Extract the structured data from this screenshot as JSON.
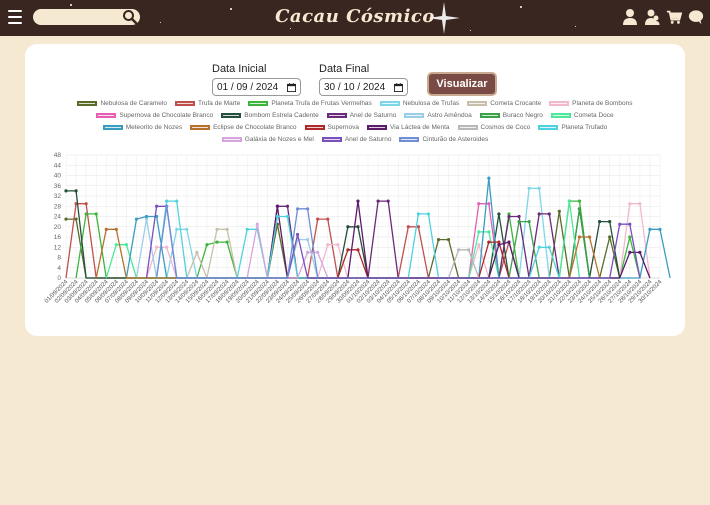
{
  "header": {
    "title": "Cacau Cósmico",
    "search_placeholder": "",
    "icons": [
      "menu-icon",
      "search-icon",
      "user-icon",
      "users-icon",
      "cart-icon",
      "chat-icon"
    ]
  },
  "filters": {
    "start_label": "Data Inicial",
    "start_value": "01 / 09 / 2024",
    "end_label": "Data Final",
    "end_value": "30 / 10 / 2024",
    "button_label": "Visualizar"
  },
  "chart_data": {
    "type": "line",
    "ylim": [
      0,
      48
    ],
    "yticks": [
      0,
      4,
      8,
      12,
      16,
      20,
      24,
      28,
      32,
      36,
      40,
      44,
      48
    ],
    "categories": [
      "01/09/2024",
      "02/09/2024",
      "03/09/2024",
      "04/09/2024",
      "05/09/2024",
      "06/09/2024",
      "07/09/2024",
      "08/09/2024",
      "09/09/2024",
      "10/09/2024",
      "11/09/2024",
      "12/09/2024",
      "13/09/2024",
      "14/09/2024",
      "15/09/2024",
      "16/09/2024",
      "17/09/2024",
      "18/09/2024",
      "19/09/2024",
      "20/09/2024",
      "21/09/2024",
      "22/09/2024",
      "23/09/2024",
      "24/09/2024",
      "25/09/2024",
      "26/09/2024",
      "27/09/2024",
      "28/09/2024",
      "29/09/2024",
      "30/09/2024",
      "01/10/2024",
      "02/10/2024",
      "03/10/2024",
      "04/10/2024",
      "05/10/2024",
      "06/10/2024",
      "07/10/2024",
      "08/10/2024",
      "09/10/2024",
      "10/10/2024",
      "11/10/2024",
      "12/10/2024",
      "13/10/2024",
      "14/10/2024",
      "15/10/2024",
      "16/10/2024",
      "17/10/2024",
      "18/10/2024",
      "19/10/2024",
      "20/10/2024",
      "21/10/2024",
      "22/10/2024",
      "23/10/2024",
      "24/10/2024",
      "25/10/2024",
      "26/10/2024",
      "27/10/2024",
      "28/10/2024",
      "29/10/2024",
      "30/10/2024"
    ],
    "legend_rows": [
      [
        "Nebulosa de Caramelo",
        "Trufa de Marte",
        "Planeta Trufa de Frutas Vermelhas",
        "Nebulosa de Trufas",
        "Cometa Crocante",
        "Planeta de Bombons"
      ],
      [
        "Supernova de Chocolate Branco",
        "Bombom Estrela Cadente",
        "Anel de Saturno",
        "Astro Amêndoa",
        "Buraco Negro",
        "Cometa Doce"
      ],
      [
        "Meteorito de Nozes",
        "Eclipse de Chocolate Branco",
        "Supernova",
        "Via Láctea de Menta",
        "Cosmos de Coco",
        "Planeta Trufado"
      ],
      [
        "Galáxia de Nozes e Mel",
        "Anel de Saturno",
        "Cinturão de Asteroides"
      ]
    ],
    "series": [
      {
        "name": "Nebulosa de Caramelo",
        "color": "#5a6b2a",
        "points": [
          [
            0,
            23
          ],
          [
            1,
            23
          ],
          [
            2,
            0
          ],
          [
            20,
            0
          ],
          [
            21,
            21
          ],
          [
            22,
            0
          ],
          [
            36,
            0
          ],
          [
            37,
            15
          ],
          [
            38,
            15
          ],
          [
            39,
            0
          ],
          [
            48,
            0
          ],
          [
            49,
            26
          ],
          [
            50,
            0
          ],
          [
            53,
            0
          ],
          [
            54,
            16
          ],
          [
            55,
            0
          ]
        ]
      },
      {
        "name": "Trufa de Marte",
        "color": "#c0504d",
        "points": [
          [
            0,
            0
          ],
          [
            1,
            29
          ],
          [
            2,
            29
          ],
          [
            3,
            0
          ],
          [
            24,
            0
          ],
          [
            25,
            23
          ],
          [
            26,
            23
          ],
          [
            27,
            0
          ],
          [
            33,
            0
          ],
          [
            34,
            20
          ],
          [
            35,
            20
          ],
          [
            36,
            0
          ],
          [
            43,
            0
          ],
          [
            44,
            14
          ],
          [
            45,
            0
          ]
        ]
      },
      {
        "name": "Planeta Trufa de Frutas Vermelhas",
        "color": "#3db53d",
        "points": [
          [
            1,
            0
          ],
          [
            2,
            25
          ],
          [
            3,
            25
          ],
          [
            4,
            0
          ],
          [
            13,
            0
          ],
          [
            14,
            13
          ],
          [
            15,
            14
          ],
          [
            16,
            14
          ],
          [
            17,
            0
          ],
          [
            43,
            0
          ],
          [
            44,
            25
          ],
          [
            45,
            0
          ],
          [
            49,
            0
          ],
          [
            50,
            30
          ],
          [
            51,
            30
          ],
          [
            52,
            0
          ],
          [
            55,
            0
          ],
          [
            56,
            16
          ],
          [
            57,
            0
          ]
        ]
      },
      {
        "name": "Nebulosa de Trufas",
        "color": "#7fd6e8",
        "points": [
          [
            10,
            0
          ],
          [
            11,
            19
          ],
          [
            12,
            19
          ],
          [
            13,
            0
          ],
          [
            45,
            0
          ],
          [
            46,
            35
          ],
          [
            47,
            35
          ],
          [
            48,
            0
          ]
        ]
      },
      {
        "name": "Cometa Crocante",
        "color": "#c8c0a8",
        "points": [
          [
            12,
            0
          ],
          [
            13,
            10
          ],
          [
            14,
            0
          ],
          [
            15,
            19
          ],
          [
            16,
            19
          ],
          [
            17,
            0
          ]
        ]
      },
      {
        "name": "Planeta de Bombons",
        "color": "#f2b8d0",
        "points": [
          [
            8,
            0
          ],
          [
            9,
            12
          ],
          [
            10,
            12
          ],
          [
            11,
            0
          ],
          [
            25,
            0
          ],
          [
            26,
            13
          ],
          [
            27,
            13
          ],
          [
            28,
            0
          ],
          [
            40,
            0
          ],
          [
            41,
            13
          ],
          [
            42,
            0
          ],
          [
            55,
            0
          ],
          [
            56,
            29
          ],
          [
            57,
            29
          ],
          [
            58,
            0
          ]
        ]
      },
      {
        "name": "Supernova de Chocolate Branco",
        "color": "#e75fb0",
        "points": [
          [
            40,
            0
          ],
          [
            41,
            29
          ],
          [
            42,
            29
          ],
          [
            43,
            0
          ]
        ]
      },
      {
        "name": "Bombom Estrela Cadente",
        "color": "#244f3a",
        "points": [
          [
            0,
            34
          ],
          [
            1,
            34
          ],
          [
            2,
            0
          ],
          [
            27,
            0
          ],
          [
            28,
            20
          ],
          [
            29,
            20
          ],
          [
            30,
            0
          ],
          [
            42,
            0
          ],
          [
            43,
            25
          ],
          [
            44,
            0
          ],
          [
            50,
            0
          ],
          [
            51,
            27
          ],
          [
            52,
            0
          ],
          [
            53,
            22
          ],
          [
            54,
            22
          ],
          [
            55,
            0
          ]
        ]
      },
      {
        "name": "Anel de Saturno",
        "color": "#6a2a7a",
        "points": [
          [
            20,
            0
          ],
          [
            21,
            28
          ],
          [
            22,
            28
          ],
          [
            23,
            0
          ],
          [
            30,
            0
          ],
          [
            31,
            30
          ],
          [
            32,
            30
          ],
          [
            33,
            0
          ],
          [
            43,
            0
          ],
          [
            44,
            24
          ],
          [
            45,
            24
          ],
          [
            46,
            0
          ],
          [
            47,
            25
          ],
          [
            48,
            25
          ],
          [
            49,
            0
          ]
        ]
      },
      {
        "name": "Astro Amêndoa",
        "color": "#9ccde6",
        "points": [
          [
            7,
            0
          ],
          [
            8,
            23
          ],
          [
            9,
            0
          ],
          [
            22,
            0
          ],
          [
            23,
            15
          ],
          [
            24,
            15
          ],
          [
            25,
            0
          ]
        ]
      },
      {
        "name": "Buraco Negro",
        "color": "#3ba24a",
        "points": [
          [
            44,
            0
          ],
          [
            45,
            22
          ],
          [
            46,
            22
          ],
          [
            47,
            0
          ],
          [
            50,
            0
          ],
          [
            51,
            27
          ],
          [
            52,
            0
          ]
        ]
      },
      {
        "name": "Cometa Doce",
        "color": "#4de89a",
        "points": [
          [
            4,
            0
          ],
          [
            5,
            13
          ],
          [
            6,
            13
          ],
          [
            7,
            0
          ],
          [
            40,
            0
          ],
          [
            41,
            18
          ],
          [
            42,
            18
          ],
          [
            43,
            0
          ],
          [
            49,
            0
          ],
          [
            50,
            30
          ],
          [
            51,
            0
          ]
        ]
      },
      {
        "name": "Meteorito de Nozes",
        "color": "#3a9cc0",
        "points": [
          [
            6,
            0
          ],
          [
            7,
            23
          ],
          [
            8,
            24
          ],
          [
            9,
            24
          ],
          [
            10,
            0
          ],
          [
            41,
            0
          ],
          [
            42,
            39
          ],
          [
            43,
            0
          ],
          [
            57,
            0
          ],
          [
            58,
            19
          ],
          [
            59,
            19
          ],
          [
            60,
            0
          ]
        ]
      },
      {
        "name": "Eclipse de Chocolate Branco",
        "color": "#b5722e",
        "points": [
          [
            3,
            0
          ],
          [
            4,
            19
          ],
          [
            5,
            19
          ],
          [
            6,
            0
          ],
          [
            50,
            0
          ],
          [
            51,
            16
          ],
          [
            52,
            16
          ],
          [
            53,
            0
          ]
        ]
      },
      {
        "name": "Supernova",
        "color": "#b0282a",
        "points": [
          [
            27,
            0
          ],
          [
            28,
            11
          ],
          [
            29,
            11
          ],
          [
            30,
            0
          ],
          [
            41,
            0
          ],
          [
            42,
            14
          ],
          [
            43,
            14
          ],
          [
            44,
            0
          ]
        ]
      },
      {
        "name": "Via Láctea de Menta",
        "color": "#5c1a6a",
        "points": [
          [
            20,
            0
          ],
          [
            21,
            28
          ],
          [
            22,
            0
          ],
          [
            28,
            0
          ],
          [
            29,
            30
          ],
          [
            30,
            0
          ],
          [
            42,
            0
          ],
          [
            43,
            13
          ],
          [
            44,
            14
          ],
          [
            45,
            0
          ],
          [
            55,
            0
          ],
          [
            56,
            10
          ],
          [
            57,
            10
          ],
          [
            58,
            0
          ]
        ]
      },
      {
        "name": "Cosmos de Coco",
        "color": "#b8b8b8",
        "points": [
          [
            38,
            0
          ],
          [
            39,
            11
          ],
          [
            40,
            11
          ],
          [
            41,
            0
          ]
        ]
      },
      {
        "name": "Planeta Trufado",
        "color": "#4fd2e0",
        "points": [
          [
            9,
            0
          ],
          [
            10,
            30
          ],
          [
            11,
            30
          ],
          [
            12,
            0
          ],
          [
            17,
            0
          ],
          [
            18,
            19
          ],
          [
            19,
            19
          ],
          [
            20,
            0
          ],
          [
            21,
            24
          ],
          [
            22,
            24
          ],
          [
            23,
            0
          ],
          [
            34,
            0
          ],
          [
            35,
            25
          ],
          [
            36,
            25
          ],
          [
            37,
            0
          ],
          [
            46,
            0
          ],
          [
            47,
            12
          ],
          [
            48,
            12
          ],
          [
            49,
            0
          ]
        ]
      },
      {
        "name": "Galáxia de Nozes e Mel",
        "color": "#d6a5dd",
        "points": [
          [
            18,
            0
          ],
          [
            19,
            21
          ],
          [
            20,
            0
          ],
          [
            23,
            0
          ],
          [
            24,
            10
          ],
          [
            25,
            10
          ],
          [
            26,
            0
          ]
        ]
      },
      {
        "name": "Anel de Saturno",
        "color": "#7a4fbe",
        "points": [
          [
            8,
            0
          ],
          [
            9,
            28
          ],
          [
            10,
            28
          ],
          [
            11,
            0
          ],
          [
            22,
            0
          ],
          [
            23,
            17
          ],
          [
            24,
            0
          ],
          [
            54,
            0
          ],
          [
            55,
            21
          ],
          [
            56,
            21
          ],
          [
            57,
            0
          ]
        ]
      },
      {
        "name": "Cinturão de Asteroides",
        "color": "#6f8ed6",
        "points": [
          [
            9,
            0
          ],
          [
            10,
            28
          ],
          [
            11,
            0
          ],
          [
            22,
            0
          ],
          [
            23,
            27
          ],
          [
            24,
            27
          ],
          [
            25,
            0
          ]
        ]
      }
    ]
  }
}
